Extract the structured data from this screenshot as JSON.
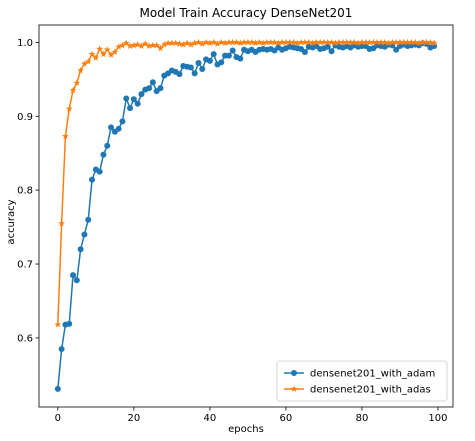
{
  "chart_data": {
    "type": "line",
    "title": "Model Train Accuracy DenseNet201",
    "xlabel": "epochs",
    "ylabel": "accuracy",
    "xlim": [
      -4.95,
      103.95
    ],
    "ylim": [
      0.5065,
      1.0235
    ],
    "xticks": [
      0,
      20,
      40,
      60,
      80,
      100
    ],
    "yticks": [
      0.6,
      0.7,
      0.8,
      0.9,
      1.0
    ],
    "ytick_labels": [
      "0.6",
      "0.7",
      "0.8",
      "0.9",
      "1.0"
    ],
    "grid": false,
    "legend_position": "lower-right",
    "x": [
      0,
      1,
      2,
      3,
      4,
      5,
      6,
      7,
      8,
      9,
      10,
      11,
      12,
      13,
      14,
      15,
      16,
      17,
      18,
      19,
      20,
      21,
      22,
      23,
      24,
      25,
      26,
      27,
      28,
      29,
      30,
      31,
      32,
      33,
      34,
      35,
      36,
      37,
      38,
      39,
      40,
      41,
      42,
      43,
      44,
      45,
      46,
      47,
      48,
      49,
      50,
      51,
      52,
      53,
      54,
      55,
      56,
      57,
      58,
      59,
      60,
      61,
      62,
      63,
      64,
      65,
      66,
      67,
      68,
      69,
      70,
      71,
      72,
      73,
      74,
      75,
      76,
      77,
      78,
      79,
      80,
      81,
      82,
      83,
      84,
      85,
      86,
      87,
      88,
      89,
      90,
      91,
      92,
      93,
      94,
      95,
      96,
      97,
      98,
      99
    ],
    "series": [
      {
        "name": "densenet201_with_adam",
        "color": "#1f77b4",
        "marker": "circle",
        "values": [
          0.531,
          0.585,
          0.618,
          0.619,
          0.685,
          0.678,
          0.72,
          0.74,
          0.76,
          0.814,
          0.828,
          0.825,
          0.848,
          0.86,
          0.885,
          0.879,
          0.883,
          0.893,
          0.924,
          0.911,
          0.923,
          0.917,
          0.93,
          0.936,
          0.938,
          0.946,
          0.934,
          0.938,
          0.955,
          0.958,
          0.962,
          0.96,
          0.957,
          0.968,
          0.967,
          0.966,
          0.958,
          0.972,
          0.964,
          0.977,
          0.975,
          0.984,
          0.97,
          0.973,
          0.982,
          0.982,
          0.989,
          0.98,
          0.978,
          0.99,
          0.988,
          0.99,
          0.987,
          0.99,
          0.991,
          0.99,
          0.991,
          0.989,
          0.993,
          0.99,
          0.992,
          0.994,
          0.993,
          0.992,
          0.991,
          0.987,
          0.994,
          0.993,
          0.995,
          0.991,
          0.992,
          0.994,
          0.988,
          0.996,
          0.994,
          0.993,
          0.995,
          0.993,
          0.996,
          0.994,
          0.995,
          0.995,
          0.991,
          0.992,
          0.996,
          0.995,
          0.994,
          0.997,
          0.996,
          0.99,
          0.995,
          0.997,
          0.995,
          0.996,
          0.997,
          0.996,
          0.999,
          0.998,
          0.993,
          0.995
        ]
      },
      {
        "name": "densenet201_with_adas",
        "color": "#ff7f0e",
        "marker": "star",
        "values": [
          0.618,
          0.755,
          0.873,
          0.91,
          0.935,
          0.945,
          0.962,
          0.971,
          0.974,
          0.984,
          0.979,
          0.991,
          0.984,
          0.99,
          0.983,
          0.987,
          0.994,
          0.996,
          0.999,
          0.995,
          0.996,
          0.997,
          0.995,
          0.998,
          0.995,
          0.996,
          0.996,
          0.992,
          0.997,
          0.999,
          0.999,
          0.999,
          0.998,
          0.997,
          0.999,
          0.997,
          0.999,
          1.0,
          0.998,
          1.0,
          0.999,
          1.0,
          0.998,
          1.0,
          0.999,
          1.0,
          1.0,
          1.0,
          0.999,
          1.0,
          1.0,
          1.0,
          0.999,
          1.0,
          0.999,
          1.0,
          1.0,
          1.0,
          0.999,
          1.0,
          1.0,
          1.0,
          1.0,
          0.999,
          1.0,
          1.0,
          1.0,
          0.999,
          1.0,
          1.0,
          1.0,
          1.0,
          1.0,
          0.999,
          1.0,
          1.0,
          1.0,
          1.0,
          1.0,
          0.999,
          1.0,
          1.0,
          1.0,
          1.0,
          1.0,
          1.0,
          1.0,
          0.999,
          1.0,
          1.0,
          1.0,
          1.0,
          1.0,
          1.0,
          1.0,
          0.999,
          1.0,
          1.0,
          1.0,
          0.999
        ]
      }
    ]
  }
}
